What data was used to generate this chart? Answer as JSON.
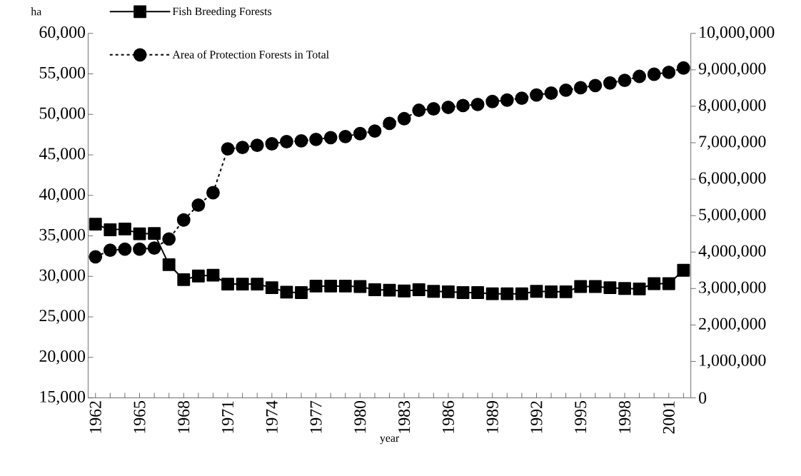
{
  "chart_data": {
    "type": "line",
    "xlabel": "year",
    "ylabel": "ha",
    "categories": [
      "1962",
      null,
      null,
      "1965",
      null,
      null,
      "1968",
      null,
      null,
      "1971",
      null,
      null,
      "1974",
      null,
      null,
      "1977",
      null,
      null,
      "1980",
      null,
      null,
      "1983",
      null,
      null,
      "1986",
      null,
      null,
      "1989",
      null,
      null,
      "1992",
      null,
      null,
      "1995",
      null,
      null,
      "1998",
      null,
      null,
      "2001",
      null
    ],
    "series": [
      {
        "name": "Fish Breeding Forests",
        "color": "#000000",
        "marker": "square",
        "line_style": "solid",
        "axis": "y",
        "values": [
          36450,
          35750,
          35850,
          35250,
          35300,
          31450,
          29600,
          30050,
          30150,
          29050,
          29050,
          29050,
          28600,
          28050,
          28000,
          28800,
          28800,
          28800,
          28750,
          28350,
          28300,
          28200,
          28350,
          28150,
          28100,
          28000,
          28000,
          27850,
          27850,
          27850,
          28150,
          28100,
          28100,
          28750,
          28750,
          28600,
          28500,
          28450,
          29100,
          29100,
          30750
        ]
      },
      {
        "name": "Area of Protection Forests in Total",
        "color": "#000000",
        "marker": "circle",
        "line_style": "dashed",
        "axis": "y2",
        "values": [
          3870000,
          4050000,
          4080000,
          4080000,
          4110000,
          4360000,
          4880000,
          5290000,
          5630000,
          6830000,
          6870000,
          6930000,
          6970000,
          7030000,
          7050000,
          7090000,
          7140000,
          7170000,
          7250000,
          7320000,
          7530000,
          7660000,
          7890000,
          7930000,
          7970000,
          8020000,
          8050000,
          8130000,
          8170000,
          8220000,
          8310000,
          8360000,
          8440000,
          8510000,
          8570000,
          8640000,
          8710000,
          8820000,
          8880000,
          8930000,
          9050000
        ]
      }
    ],
    "ylim": [
      15000,
      60000
    ],
    "yticks": [
      {
        "value": 15000,
        "label": "15,000"
      },
      {
        "value": 20000,
        "label": "20,000"
      },
      {
        "value": 25000,
        "label": "25,000"
      },
      {
        "value": 30000,
        "label": "30,000"
      },
      {
        "value": 35000,
        "label": "35,000"
      },
      {
        "value": 40000,
        "label": "40,000"
      },
      {
        "value": 45000,
        "label": "45,000"
      },
      {
        "value": 50000,
        "label": "50,000"
      },
      {
        "value": 55000,
        "label": "55,000"
      },
      {
        "value": 60000,
        "label": "60,000"
      }
    ],
    "y2lim": [
      0,
      10000000
    ],
    "y2ticks": [
      0,
      {
        "value": 1000000,
        "label": "1,000,000"
      },
      {
        "value": 2000000,
        "label": "2,000,000"
      },
      {
        "value": 3000000,
        "label": "3,000,000"
      },
      {
        "value": 4000000,
        "label": "4,000,000"
      },
      {
        "value": 5000000,
        "label": "5,000,000"
      },
      {
        "value": 6000000,
        "label": "6,000,000"
      },
      {
        "value": 7000000,
        "label": "7,000,000"
      },
      {
        "value": 8000000,
        "label": "8,000,000"
      },
      {
        "value": 9000000,
        "label": "9,000,000"
      },
      {
        "value": 10000000,
        "label": "10,000,000"
      }
    ],
    "legend": "top left"
  }
}
